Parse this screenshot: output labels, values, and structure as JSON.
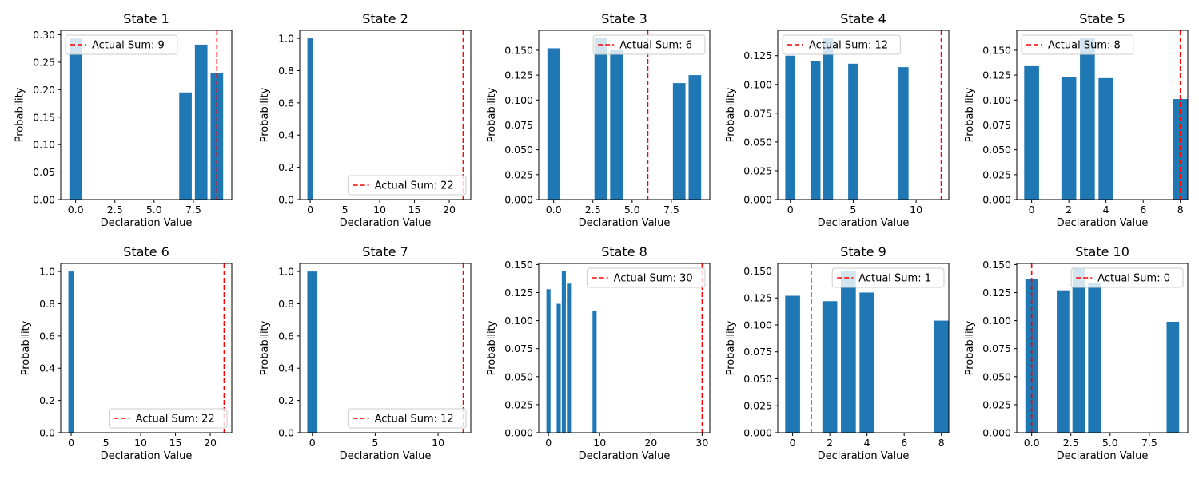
{
  "colors": {
    "bar": "#1f77b4",
    "actual_sum_line": "#ff0000",
    "axes": "#000000"
  },
  "chart_data": [
    {
      "type": "bar",
      "title": "State 1",
      "xlabel": "Declaration Value",
      "ylabel": "Probability",
      "xlim": [
        -0.95,
        9.95
      ],
      "ylim": [
        0,
        0.308
      ],
      "xticks": [
        0,
        2.5,
        5,
        7.5
      ],
      "xtick_labels": [
        "0.0",
        "2.5",
        "5.0",
        "7.5"
      ],
      "yticks": [
        0,
        0.05,
        0.1,
        0.15,
        0.2,
        0.25,
        0.3
      ],
      "ytick_labels": [
        "0.00",
        "0.05",
        "0.10",
        "0.15",
        "0.20",
        "0.25",
        "0.30"
      ],
      "x": [
        0,
        7,
        8,
        9
      ],
      "values": [
        0.293,
        0.195,
        0.282,
        0.23
      ],
      "actual_sum": 9,
      "legend_label": "Actual Sum: 9",
      "legend_loc": "upper left"
    },
    {
      "type": "bar",
      "title": "State 2",
      "xlabel": "Declaration Value",
      "ylabel": "Probability",
      "xlim": [
        -1.5,
        23.1
      ],
      "ylim": [
        0,
        1.05
      ],
      "xticks": [
        0,
        5,
        10,
        15,
        20
      ],
      "xtick_labels": [
        "0",
        "5",
        "10",
        "15",
        "20"
      ],
      "yticks": [
        0,
        0.2,
        0.4,
        0.6,
        0.8,
        1.0
      ],
      "ytick_labels": [
        "0.0",
        "0.2",
        "0.4",
        "0.6",
        "0.8",
        "1.0"
      ],
      "x": [
        0
      ],
      "values": [
        1.0
      ],
      "actual_sum": 22,
      "legend_label": "Actual Sum: 22",
      "legend_loc": "lower right"
    },
    {
      "type": "bar",
      "title": "State 3",
      "xlabel": "Declaration Value",
      "ylabel": "Probability",
      "xlim": [
        -0.95,
        9.95
      ],
      "ylim": [
        0,
        0.17
      ],
      "xticks": [
        0,
        2.5,
        5,
        7.5
      ],
      "xtick_labels": [
        "0.0",
        "2.5",
        "5.0",
        "7.5"
      ],
      "yticks": [
        0,
        0.025,
        0.05,
        0.075,
        0.1,
        0.125,
        0.15
      ],
      "ytick_labels": [
        "0.000",
        "0.025",
        "0.050",
        "0.075",
        "0.100",
        "0.125",
        "0.150"
      ],
      "x": [
        0,
        3,
        4,
        8,
        9
      ],
      "values": [
        0.152,
        0.162,
        0.15,
        0.117,
        0.125
      ],
      "actual_sum": 6,
      "legend_label": "Actual Sum: 6",
      "legend_loc": "upper right"
    },
    {
      "type": "bar",
      "title": "State 4",
      "xlabel": "Declaration Value",
      "ylabel": "Probability",
      "xlim": [
        -1.0,
        12.6
      ],
      "ylim": [
        0,
        0.147
      ],
      "xticks": [
        0,
        5,
        10
      ],
      "xtick_labels": [
        "0",
        "5",
        "10"
      ],
      "yticks": [
        0,
        0.025,
        0.05,
        0.075,
        0.1,
        0.125
      ],
      "ytick_labels": [
        "0.000",
        "0.025",
        "0.050",
        "0.075",
        "0.100",
        "0.125"
      ],
      "x": [
        0,
        2,
        3,
        5,
        9
      ],
      "values": [
        0.125,
        0.12,
        0.14,
        0.118,
        0.115
      ],
      "actual_sum": 12,
      "legend_label": "Actual Sum: 12",
      "legend_loc": "upper left"
    },
    {
      "type": "bar",
      "title": "State 5",
      "xlabel": "Declaration Value",
      "ylabel": "Probability",
      "xlim": [
        -0.8,
        8.4
      ],
      "ylim": [
        0,
        0.17
      ],
      "xticks": [
        0,
        2,
        4,
        6,
        8
      ],
      "xtick_labels": [
        "0",
        "2",
        "4",
        "6",
        "8"
      ],
      "yticks": [
        0,
        0.025,
        0.05,
        0.075,
        0.1,
        0.125,
        0.15
      ],
      "ytick_labels": [
        "0.000",
        "0.025",
        "0.050",
        "0.075",
        "0.100",
        "0.125",
        "0.150"
      ],
      "x": [
        0,
        2,
        3,
        4,
        8
      ],
      "values": [
        0.134,
        0.123,
        0.162,
        0.122,
        0.101
      ],
      "actual_sum": 8,
      "legend_label": "Actual Sum: 8",
      "legend_loc": "upper left"
    },
    {
      "type": "bar",
      "title": "State 6",
      "xlabel": "Declaration Value",
      "ylabel": "Probability",
      "xlim": [
        -1.5,
        23.1
      ],
      "ylim": [
        0,
        1.05
      ],
      "xticks": [
        0,
        5,
        10,
        15,
        20
      ],
      "xtick_labels": [
        "0",
        "5",
        "10",
        "15",
        "20"
      ],
      "yticks": [
        0,
        0.2,
        0.4,
        0.6,
        0.8,
        1.0
      ],
      "ytick_labels": [
        "0.0",
        "0.2",
        "0.4",
        "0.6",
        "0.8",
        "1.0"
      ],
      "x": [
        0
      ],
      "values": [
        1.0
      ],
      "actual_sum": 22,
      "legend_label": "Actual Sum: 22",
      "legend_loc": "lower right"
    },
    {
      "type": "bar",
      "title": "State 7",
      "xlabel": "Declaration Value",
      "ylabel": "Probability",
      "xlim": [
        -1.0,
        12.6
      ],
      "ylim": [
        0,
        1.05
      ],
      "xticks": [
        0,
        5,
        10
      ],
      "xtick_labels": [
        "0",
        "5",
        "10"
      ],
      "yticks": [
        0,
        0.2,
        0.4,
        0.6,
        0.8,
        1.0
      ],
      "ytick_labels": [
        "0.0",
        "0.2",
        "0.4",
        "0.6",
        "0.8",
        "1.0"
      ],
      "x": [
        0
      ],
      "values": [
        1.0
      ],
      "actual_sum": 12,
      "legend_label": "Actual Sum: 12",
      "legend_loc": "lower right"
    },
    {
      "type": "bar",
      "title": "State 8",
      "xlabel": "Declaration Value",
      "ylabel": "Probability",
      "xlim": [
        -1.9,
        31.5
      ],
      "ylim": [
        0,
        0.151
      ],
      "xticks": [
        0,
        10,
        20,
        30
      ],
      "xtick_labels": [
        "0",
        "10",
        "20",
        "30"
      ],
      "yticks": [
        0,
        0.025,
        0.05,
        0.075,
        0.1,
        0.125,
        0.15
      ],
      "ytick_labels": [
        "0.000",
        "0.025",
        "0.050",
        "0.075",
        "0.100",
        "0.125",
        "0.150"
      ],
      "x": [
        0,
        2,
        3,
        4,
        9
      ],
      "values": [
        0.128,
        0.115,
        0.144,
        0.133,
        0.109
      ],
      "actual_sum": 30,
      "legend_label": "Actual Sum: 30",
      "legend_loc": "upper right"
    },
    {
      "type": "bar",
      "title": "State 9",
      "xlabel": "Declaration Value",
      "ylabel": "Probability",
      "xlim": [
        -0.8,
        8.4
      ],
      "ylim": [
        0,
        0.157
      ],
      "xticks": [
        0,
        2,
        4,
        6,
        8
      ],
      "xtick_labels": [
        "0",
        "2",
        "4",
        "6",
        "8"
      ],
      "yticks": [
        0,
        0.025,
        0.05,
        0.075,
        0.1,
        0.125,
        0.15
      ],
      "ytick_labels": [
        "0.000",
        "0.025",
        "0.050",
        "0.075",
        "0.100",
        "0.125",
        "0.150"
      ],
      "x": [
        0,
        2,
        3,
        4,
        8
      ],
      "values": [
        0.127,
        0.122,
        0.15,
        0.13,
        0.104
      ],
      "actual_sum": 1,
      "legend_label": "Actual Sum: 1",
      "legend_loc": "upper right"
    },
    {
      "type": "bar",
      "title": "State 10",
      "xlabel": "Declaration Value",
      "ylabel": "Probability",
      "xlim": [
        -0.95,
        9.95
      ],
      "ylim": [
        0,
        0.151
      ],
      "xticks": [
        0,
        2.5,
        5,
        7.5
      ],
      "xtick_labels": [
        "0.0",
        "2.5",
        "5.0",
        "7.5"
      ],
      "yticks": [
        0,
        0.025,
        0.05,
        0.075,
        0.1,
        0.125,
        0.15
      ],
      "ytick_labels": [
        "0.000",
        "0.025",
        "0.050",
        "0.075",
        "0.100",
        "0.125",
        "0.150"
      ],
      "x": [
        0,
        2,
        3,
        4,
        9
      ],
      "values": [
        0.137,
        0.127,
        0.147,
        0.134,
        0.099
      ],
      "actual_sum": 0,
      "legend_label": "Actual Sum: 0",
      "legend_loc": "upper right"
    }
  ]
}
